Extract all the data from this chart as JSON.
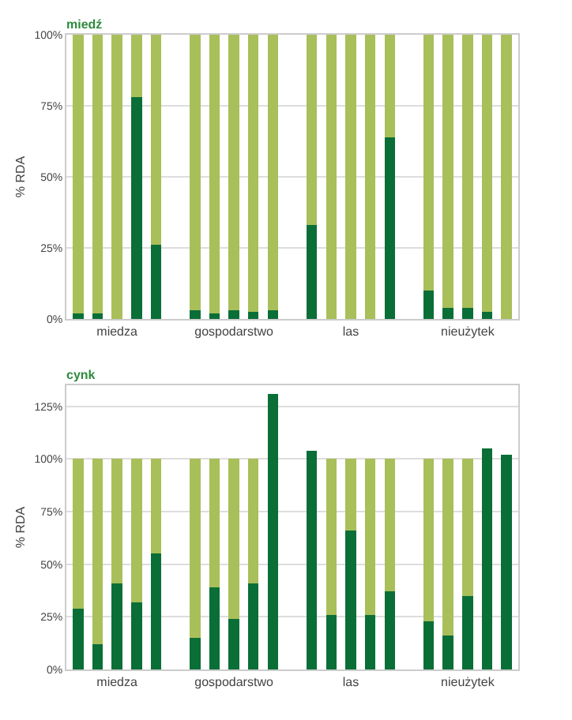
{
  "chart_data": [
    {
      "type": "bar",
      "title": "miedź",
      "ylabel": "% RDA",
      "stacked": true,
      "grid": "y",
      "categories": [
        null,
        null,
        "miedza",
        null,
        null,
        null,
        null,
        null,
        "gospodarstwo",
        null,
        null,
        null,
        null,
        null,
        "las",
        null,
        null,
        null,
        null,
        null,
        "nieużytek",
        null,
        null
      ],
      "series": [
        {
          "color": "#0a6e37",
          "values": [
            2,
            2,
            0,
            78,
            26,
            null,
            3,
            2,
            3,
            2.5,
            3,
            null,
            33,
            0,
            0,
            0,
            64,
            null,
            10,
            4,
            4,
            2.5,
            0
          ]
        },
        {
          "color": "#a8bf5a",
          "values": [
            98,
            98,
            100,
            22,
            74,
            null,
            97,
            98,
            97,
            97.5,
            97,
            null,
            67,
            100,
            100,
            100,
            36,
            null,
            90,
            96,
            96,
            97.5,
            100
          ]
        }
      ],
      "ylim": [
        0,
        100
      ],
      "yticks": [
        {
          "value": 0,
          "label": "0%"
        },
        {
          "value": 25,
          "label": "25%"
        },
        {
          "value": 50,
          "label": "50%"
        },
        {
          "value": 75,
          "label": "75%"
        },
        {
          "value": 100,
          "label": "100%"
        }
      ]
    },
    {
      "type": "bar",
      "title": "cynk",
      "ylabel": "% RDA",
      "stacked": true,
      "grid": "y",
      "categories": [
        null,
        null,
        "miedza",
        null,
        null,
        null,
        null,
        null,
        "gospodarstwo",
        null,
        null,
        null,
        null,
        null,
        "las",
        null,
        null,
        null,
        null,
        null,
        "nieużytek",
        null,
        null
      ],
      "series": [
        {
          "color": "#0a6e37",
          "values": [
            29,
            12,
            41,
            32,
            55,
            null,
            15,
            39,
            24,
            41,
            131,
            null,
            104,
            26,
            66,
            26,
            37,
            null,
            23,
            16,
            35,
            105,
            102
          ]
        },
        {
          "color": "#a8bf5a",
          "values": [
            71,
            88,
            59,
            68,
            45,
            null,
            85,
            61,
            76,
            59,
            null,
            null,
            null,
            74,
            34,
            74,
            63,
            null,
            77,
            84,
            65,
            null,
            null
          ]
        }
      ],
      "ylim": [
        0,
        135
      ],
      "yticks": [
        {
          "value": 0,
          "label": "0%"
        },
        {
          "value": 25,
          "label": "25%"
        },
        {
          "value": 50,
          "label": "50%"
        },
        {
          "value": 75,
          "label": "75%"
        },
        {
          "value": 100,
          "label": "100%"
        },
        {
          "value": 125,
          "label": "125%"
        }
      ]
    }
  ]
}
